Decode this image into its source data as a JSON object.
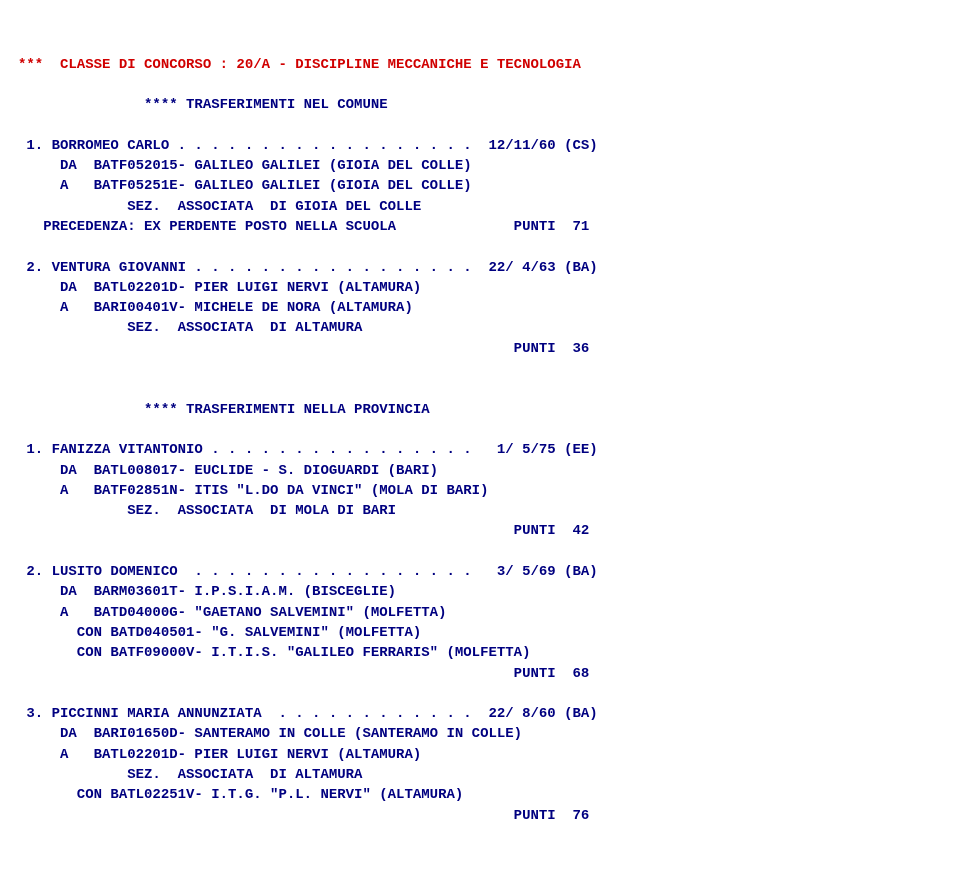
{
  "classe_header": "***  CLASSE DI CONCORSO : 20/A - DISCIPLINE MECCANICHE E TECNOLOGIA",
  "section1": {
    "title": "               **** TRASFERIMENTI NEL COMUNE",
    "items": [
      {
        "line1": " 1. BORROMEO CARLO . . . . . . . . . . . . . . . . . .  12/11/60 (CS)",
        "line2": "     DA  BATF052015- GALILEO GALILEI (GIOIA DEL COLLE)",
        "line3": "     A   BATF05251E- GALILEO GALILEI (GIOIA DEL COLLE)",
        "line4": "             SEZ.  ASSOCIATA  DI GIOIA DEL COLLE",
        "line5": "   PRECEDENZA: EX PERDENTE POSTO NELLA SCUOLA              PUNTI  71"
      },
      {
        "line1": " 2. VENTURA GIOVANNI . . . . . . . . . . . . . . . . .  22/ 4/63 (BA)",
        "line2": "     DA  BATL02201D- PIER LUIGI NERVI (ALTAMURA)",
        "line3": "     A   BARI00401V- MICHELE DE NORA (ALTAMURA)",
        "line4": "             SEZ.  ASSOCIATA  DI ALTAMURA",
        "line5": "                                                           PUNTI  36"
      }
    ]
  },
  "section2": {
    "title": "               **** TRASFERIMENTI NELLA PROVINCIA",
    "items": [
      {
        "line1": " 1. FANIZZA VITANTONIO . . . . . . . . . . . . . . . .   1/ 5/75 (EE)",
        "line2": "     DA  BATL008017- EUCLIDE - S. DIOGUARDI (BARI)",
        "line3": "     A   BATF02851N- ITIS \"L.DO DA VINCI\" (MOLA DI BARI)",
        "line4": "             SEZ.  ASSOCIATA  DI MOLA DI BARI",
        "line5": "                                                           PUNTI  42"
      },
      {
        "line1": " 2. LUSITO DOMENICO  . . . . . . . . . . . . . . . . .   3/ 5/69 (BA)",
        "line2": "     DA  BARM03601T- I.P.S.I.A.M. (BISCEGLIE)",
        "line3": "     A   BATD04000G- \"GAETANO SALVEMINI\" (MOLFETTA)",
        "line4": "       CON BATD040501- \"G. SALVEMINI\" (MOLFETTA)",
        "line5": "       CON BATF09000V- I.T.I.S. \"GALILEO FERRARIS\" (MOLFETTA)",
        "line6": "                                                           PUNTI  68"
      },
      {
        "line1": " 3. PICCINNI MARIA ANNUNZIATA  . . . . . . . . . . . .  22/ 8/60 (BA)",
        "line2": "     DA  BARI01650D- SANTERAMO IN COLLE (SANTERAMO IN COLLE)",
        "line3": "     A   BATL02201D- PIER LUIGI NERVI (ALTAMURA)",
        "line4": "             SEZ.  ASSOCIATA  DI ALTAMURA",
        "line5": "       CON BATL02251V- I.T.G. \"P.L. NERVI\" (ALTAMURA)",
        "line6": "                                                           PUNTI  76"
      }
    ]
  }
}
